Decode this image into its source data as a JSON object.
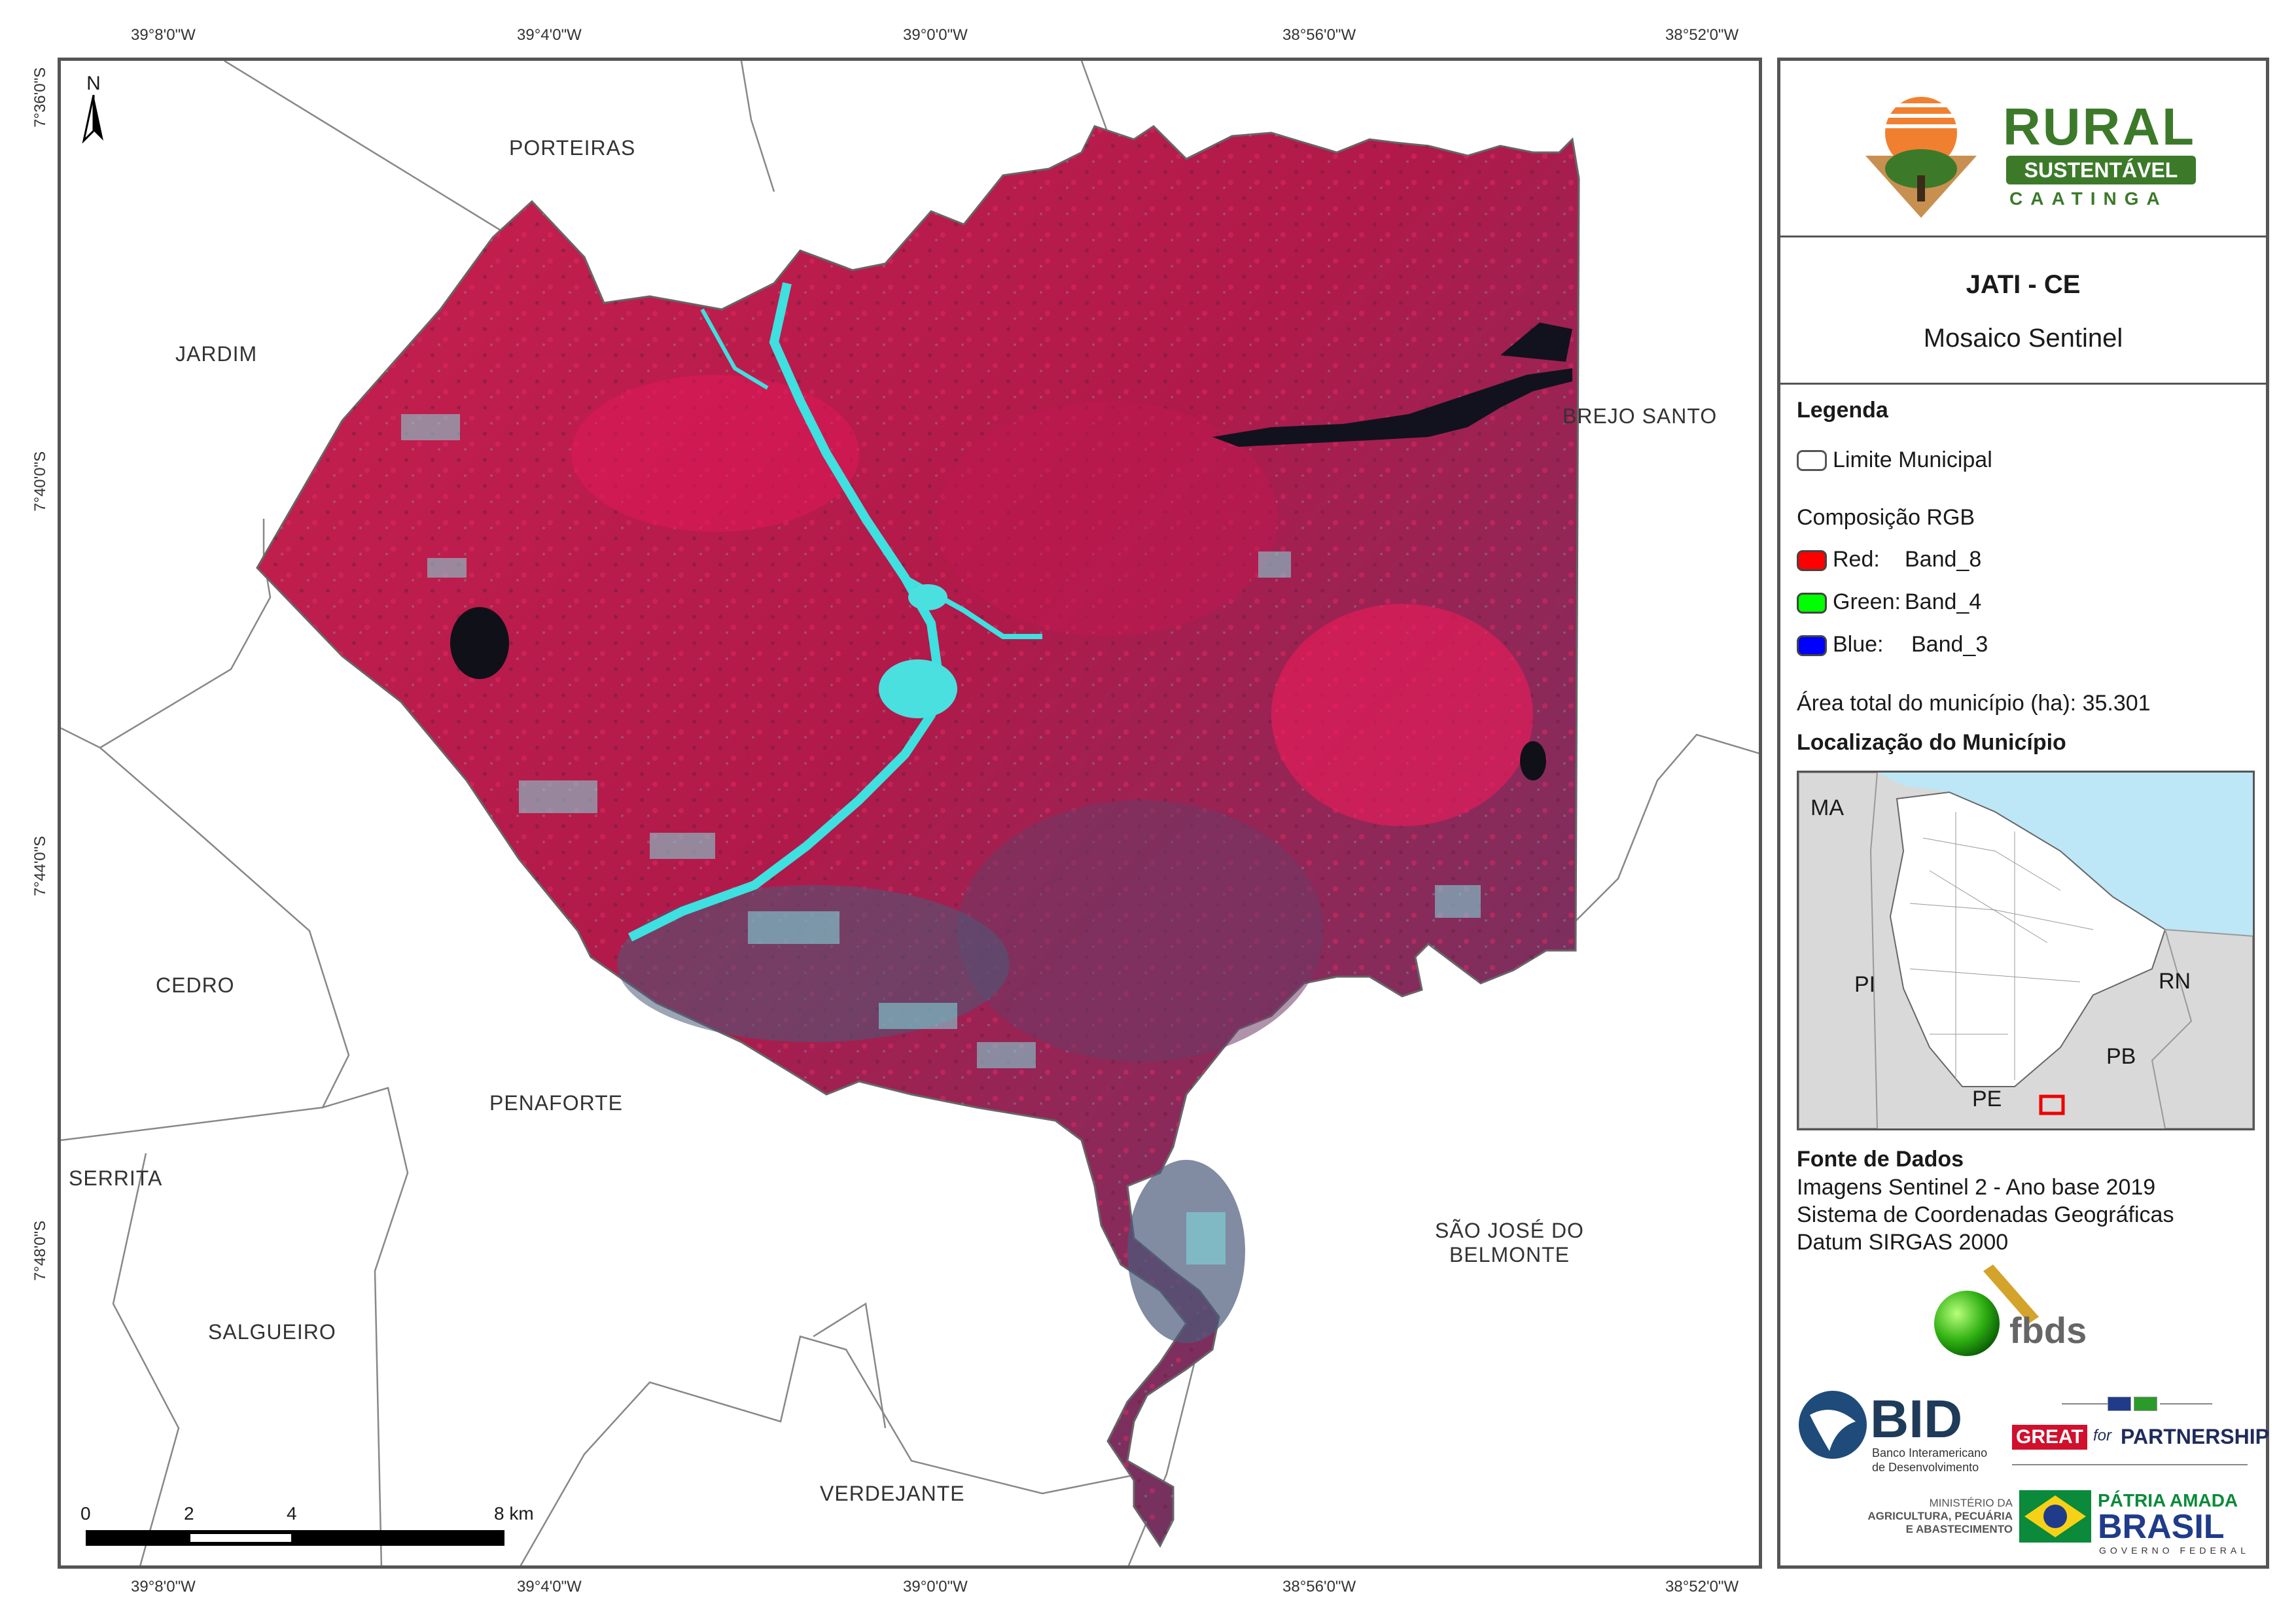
{
  "map": {
    "top_coords": [
      "39°8'0\"W",
      "39°4'0\"W",
      "39°0'0\"W",
      "38°56'0\"W",
      "38°52'0\"W"
    ],
    "bottom_coords": [
      "39°8'0\"W",
      "39°4'0\"W",
      "39°0'0\"W",
      "38°56'0\"W",
      "38°52'0\"W"
    ],
    "left_coords": [
      "7°36'0\"S",
      "7°40'0\"S",
      "7°44'0\"S",
      "7°48'0\"S"
    ],
    "north_label": "N",
    "municipalities": {
      "porteiras": "PORTEIRAS",
      "jardim": "JARDIM",
      "brejo_santo": "BREJO SANTO",
      "cedro": "CEDRO",
      "penaforte": "PENAFORTE",
      "serrita": "SERRITA",
      "salgueiro": "SALGUEIRO",
      "sao_jose_1": "SÃO JOSÉ DO",
      "sao_jose_2": "BELMONTE",
      "verdejante": "VERDEJANTE"
    },
    "scale": {
      "labels": [
        "0",
        "2",
        "4",
        "8 km"
      ]
    }
  },
  "panel": {
    "logo": {
      "line1": "RURAL",
      "line2": "SUSTENTÁVEL",
      "line3": "CAATINGA"
    },
    "title": "JATI - CE",
    "subtitle": "Mosaico Sentinel",
    "legend": {
      "heading": "Legenda",
      "limit_label": "Limite Municipal",
      "rgb_heading": "Composição RGB",
      "red_label": "Red:",
      "red_band": "Band_8",
      "green_label": "Green:",
      "green_band": "Band_4",
      "blue_label": "Blue:",
      "blue_band": "Band_3",
      "area_label": "Área total do município (ha):",
      "area_value": "35.301"
    },
    "location": {
      "heading": "Localização do Município",
      "states": {
        "ma": "MA",
        "pi": "PI",
        "rn": "RN",
        "pb": "PB",
        "pe": "PE"
      }
    },
    "source": {
      "heading": "Fonte de Dados",
      "line1": "Imagens Sentinel 2 - Ano base 2019",
      "line2": "Sistema de Coordenadas Geográficas",
      "line3": "Datum SIRGAS 2000"
    },
    "logos": {
      "fbds": "fbds",
      "bid": "BID",
      "bid_sub1": "Banco Interamericano",
      "bid_sub2": "de Desenvolvimento",
      "great": "GREAT",
      "great_for": "for",
      "great_partner": "PARTNERSHIP",
      "min1": "MINISTÉRIO DA",
      "min2": "AGRICULTURA, PECUÁRIA",
      "min3": "E ABASTECIMENTO",
      "patria": "PÁTRIA AMADA",
      "brasil": "BRASIL",
      "governo": "GOVERNO FEDERAL"
    },
    "colors": {
      "brand_green": "#3c7a2a",
      "legend_red": "#ff0000",
      "legend_green": "#00ff00",
      "legend_blue": "#0000ff"
    }
  }
}
